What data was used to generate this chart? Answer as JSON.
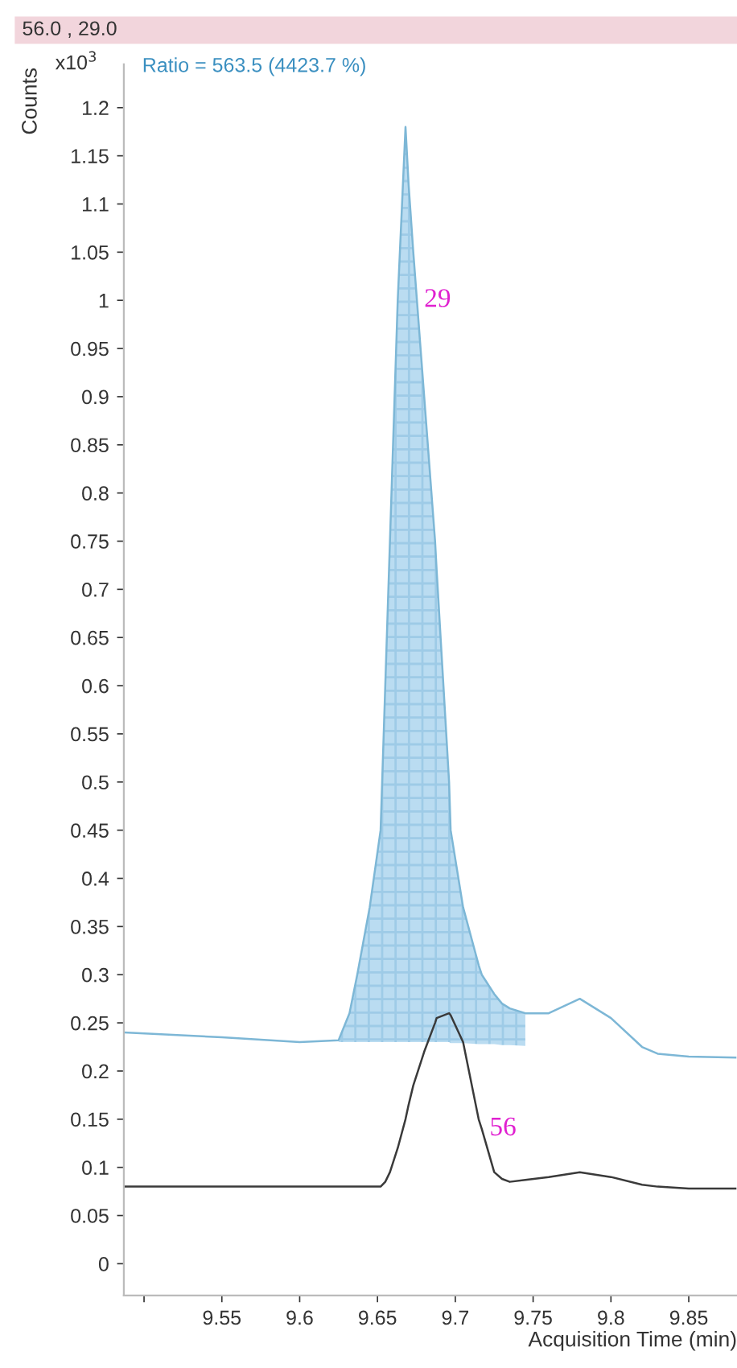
{
  "chart_data": {
    "type": "line",
    "title": "56.0 , 29.0",
    "xlabel": "Acquisition Time (min)",
    "ylabel": "Counts",
    "x": [
      9.487,
      9.55,
      9.6,
      9.625,
      9.632,
      9.637,
      9.645,
      9.652,
      9.655,
      9.658,
      9.663,
      9.668,
      9.67,
      9.673,
      9.68,
      9.687,
      9.688,
      9.696,
      9.697,
      9.705,
      9.715,
      9.717,
      9.725,
      9.73,
      9.735,
      9.745,
      9.76,
      9.78,
      9.8,
      9.82,
      9.83,
      9.85,
      9.88
    ],
    "series": [
      {
        "color": "#7db7d6",
        "values": [
          0.24,
          0.235,
          0.23,
          0.232,
          0.26,
          0.3,
          0.37,
          0.45,
          0.6,
          0.75,
          1.0,
          1.18,
          1.12,
          1.05,
          0.9,
          0.75,
          0.72,
          0.5,
          0.45,
          0.37,
          0.31,
          0.3,
          0.28,
          0.27,
          0.265,
          0.26,
          0.26,
          0.275,
          0.255,
          0.225,
          0.218,
          0.215,
          0.214
        ],
        "lower": [
          null,
          null,
          null,
          0.23,
          0.23,
          0.23,
          0.23,
          0.23,
          0.23,
          0.23,
          0.23,
          0.23,
          0.23,
          0.23,
          0.23,
          0.23,
          0.23,
          0.23,
          0.229,
          0.229,
          0.228,
          0.228,
          0.228,
          0.227,
          0.227,
          0.226,
          null,
          null,
          null,
          null,
          null,
          null,
          null
        ],
        "upper": [
          null,
          null,
          null,
          0.232,
          0.26,
          0.3,
          0.37,
          0.45,
          0.6,
          0.75,
          1.0,
          1.18,
          1.12,
          1.05,
          0.9,
          0.75,
          0.72,
          0.5,
          0.45,
          0.37,
          0.31,
          0.3,
          0.28,
          0.27,
          0.265,
          0.26,
          null,
          null,
          null,
          null,
          null,
          null,
          null
        ]
      },
      {
        "color": "#3a3a3a",
        "values": [
          0.08,
          0.08,
          0.08,
          0.08,
          0.08,
          0.08,
          0.08,
          0.08,
          0.085,
          0.095,
          0.12,
          0.15,
          0.165,
          0.185,
          0.22,
          0.25,
          0.255,
          0.26,
          0.258,
          0.23,
          0.15,
          0.14,
          0.095,
          0.088,
          0.085,
          0.087,
          0.09,
          0.095,
          0.09,
          0.082,
          0.08,
          0.078,
          0.078
        ]
      }
    ],
    "xlim": [
      9.487,
      9.881
    ],
    "ylim": [
      -0.033,
      1.245
    ],
    "xticks": [
      {
        "value": 9.5,
        "label": null
      },
      9.55,
      9.6,
      9.65,
      9.7,
      9.75,
      9.8,
      9.85
    ],
    "yticks": [
      0,
      0.05,
      0.1,
      0.15,
      0.2,
      0.25,
      0.3,
      0.35,
      0.4,
      0.45,
      0.5,
      0.55,
      0.6,
      0.65,
      0.7,
      0.75,
      0.8,
      0.85,
      0.9,
      0.95,
      1,
      1.05,
      1.1,
      1.15,
      1.2
    ],
    "annotations": [
      "x10$^{3}$",
      "Ratio = 563.5 (4423.7 %)",
      {
        "text": "29",
        "x": 9.68,
        "y": 1.0
      },
      {
        "text": "56",
        "x": 9.722,
        "y": 0.14
      }
    ],
    "grid": false,
    "legend": false,
    "marker": "none",
    "line_style": "solid"
  }
}
